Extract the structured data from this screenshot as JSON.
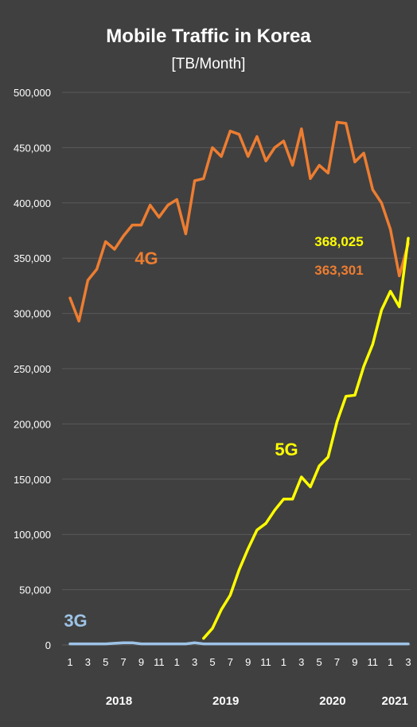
{
  "chart_data": {
    "type": "line",
    "title": "Mobile Traffic in Korea",
    "subtitle": "[TB/Month]",
    "ylim": [
      0,
      500000
    ],
    "y_ticks": [
      "0",
      "50,000",
      "100,000",
      "150,000",
      "200,000",
      "250,000",
      "300,000",
      "350,000",
      "400,000",
      "450,000",
      "500,000"
    ],
    "x_tick_labels": [
      "1",
      "3",
      "5",
      "7",
      "9",
      "11",
      "1",
      "3",
      "5",
      "7",
      "9",
      "11",
      "1",
      "3",
      "5",
      "7",
      "9",
      "11",
      "1",
      "3"
    ],
    "year_labels": [
      "2018",
      "2019",
      "2020",
      "2021"
    ],
    "grid": true,
    "legend": "inline-labels",
    "months": [
      "2018-01",
      "2018-02",
      "2018-03",
      "2018-04",
      "2018-05",
      "2018-06",
      "2018-07",
      "2018-08",
      "2018-09",
      "2018-10",
      "2018-11",
      "2018-12",
      "2019-01",
      "2019-02",
      "2019-03",
      "2019-04",
      "2019-05",
      "2019-06",
      "2019-07",
      "2019-08",
      "2019-09",
      "2019-10",
      "2019-11",
      "2019-12",
      "2020-01",
      "2020-02",
      "2020-03",
      "2020-04",
      "2020-05",
      "2020-06",
      "2020-07",
      "2020-08",
      "2020-09",
      "2020-10",
      "2020-11",
      "2020-12",
      "2021-01",
      "2021-02",
      "2021-03"
    ],
    "series": [
      {
        "name": "4G",
        "color": "#ED7D31",
        "values": [
          314000,
          293000,
          330000,
          340000,
          365000,
          358000,
          370000,
          380000,
          380000,
          398000,
          387000,
          398000,
          403000,
          372000,
          420000,
          422000,
          450000,
          442000,
          465000,
          462000,
          442000,
          460000,
          438000,
          450000,
          456000,
          434000,
          467000,
          422000,
          434000,
          427000,
          473000,
          472000,
          437000,
          445000,
          412000,
          400000,
          376000,
          334000,
          363301
        ]
      },
      {
        "name": "5G",
        "color": "#FFFF00",
        "start_month": "2019-04",
        "values": [
          6000,
          15000,
          32000,
          45000,
          68000,
          87000,
          104000,
          110000,
          122000,
          132000,
          132000,
          152000,
          143000,
          162000,
          170000,
          202000,
          225000,
          226000,
          252000,
          272000,
          303000,
          320000,
          306000,
          368025
        ]
      },
      {
        "name": "3G",
        "color": "#9DC3E6",
        "values": [
          1000,
          1000,
          1000,
          1000,
          1000,
          1500,
          2000,
          2000,
          1000,
          1000,
          1000,
          1000,
          1000,
          1000,
          2000,
          1000,
          1000,
          1000,
          1000,
          1000,
          1000,
          1000,
          1000,
          1000,
          1000,
          1000,
          1000,
          1000,
          1000,
          1000,
          1000,
          1000,
          1000,
          1000,
          1000,
          1000,
          1000,
          1000,
          1000
        ]
      }
    ],
    "annotations": [
      {
        "text": "368,025",
        "series": "5G"
      },
      {
        "text": "363,301",
        "series": "4G"
      }
    ]
  }
}
